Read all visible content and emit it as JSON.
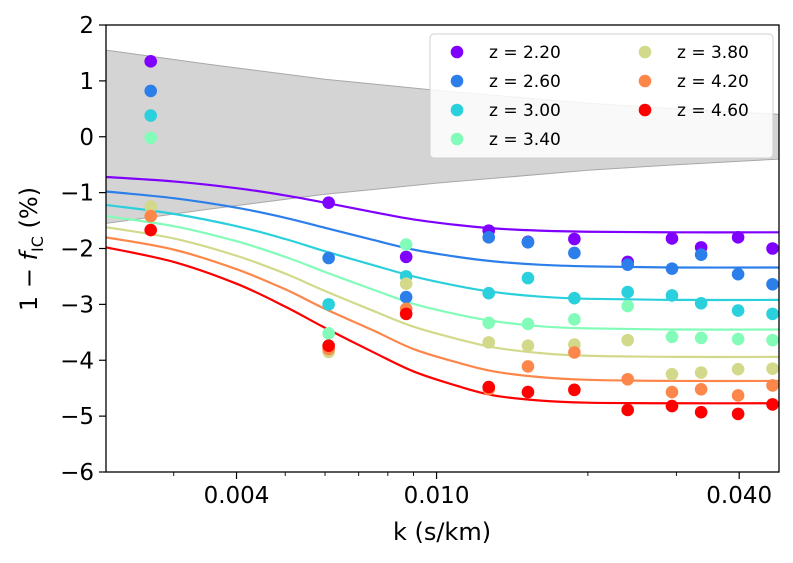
{
  "chart_data": {
    "type": "scatter",
    "xlabel": "k (s/km)",
    "ylabel_prefix": "1 − ",
    "ylabel_f": "f",
    "ylabel_sub": "IC",
    "ylabel_suffix": " (%)",
    "x_scale": "log",
    "xlim": [
      0.0022,
      0.048
    ],
    "ylim": [
      -6,
      2
    ],
    "x_ticks": [
      {
        "value": 0.004,
        "label": "0.004"
      },
      {
        "value": 0.01,
        "label": "0.010"
      },
      {
        "value": 0.04,
        "label": "0.040"
      }
    ],
    "y_ticks": [
      {
        "value": 2,
        "label": "2"
      },
      {
        "value": 1,
        "label": "1"
      },
      {
        "value": 0,
        "label": "0"
      },
      {
        "value": -1,
        "label": "−1"
      },
      {
        "value": -2,
        "label": "−2"
      },
      {
        "value": -3,
        "label": "−3"
      },
      {
        "value": -4,
        "label": "−4"
      },
      {
        "value": -5,
        "label": "−5"
      },
      {
        "value": -6,
        "label": "−6"
      }
    ],
    "legend_position": "top-right",
    "band": {
      "color": "#d4d4d4",
      "edge_color": "#a8a8a8",
      "upper": [
        [
          0.0022,
          1.55
        ],
        [
          0.0035,
          1.3
        ],
        [
          0.006,
          1.03
        ],
        [
          0.01,
          0.83
        ],
        [
          0.02,
          0.6
        ],
        [
          0.03,
          0.5
        ],
        [
          0.048,
          0.4
        ]
      ],
      "lower": [
        [
          0.0022,
          -1.55
        ],
        [
          0.0035,
          -1.3
        ],
        [
          0.006,
          -1.03
        ],
        [
          0.01,
          -0.83
        ],
        [
          0.02,
          -0.6
        ],
        [
          0.03,
          -0.5
        ],
        [
          0.048,
          -0.4
        ]
      ]
    },
    "series": [
      {
        "name": "z = 2.20",
        "color": "#7f00ff",
        "points": [
          [
            0.0027,
            1.35
          ],
          [
            0.0061,
            -1.18
          ],
          [
            0.0087,
            -2.15
          ],
          [
            0.0127,
            -1.68
          ],
          [
            0.0152,
            -1.88
          ],
          [
            0.0188,
            -1.83
          ],
          [
            0.024,
            -2.24
          ],
          [
            0.0294,
            -1.82
          ],
          [
            0.0336,
            -1.98
          ],
          [
            0.0398,
            -1.8
          ],
          [
            0.0466,
            -2.0
          ]
        ],
        "curve": [
          [
            0.0022,
            -0.72
          ],
          [
            0.003,
            -0.8
          ],
          [
            0.004,
            -0.92
          ],
          [
            0.005,
            -1.05
          ],
          [
            0.006,
            -1.18
          ],
          [
            0.0075,
            -1.35
          ],
          [
            0.009,
            -1.48
          ],
          [
            0.011,
            -1.58
          ],
          [
            0.013,
            -1.64
          ],
          [
            0.016,
            -1.68
          ],
          [
            0.02,
            -1.7
          ],
          [
            0.03,
            -1.71
          ],
          [
            0.048,
            -1.71
          ]
        ]
      },
      {
        "name": "z = 2.60",
        "color": "#2c7fea",
        "points": [
          [
            0.0027,
            0.82
          ],
          [
            0.0061,
            -2.17
          ],
          [
            0.0087,
            -2.87
          ],
          [
            0.0127,
            -1.8
          ],
          [
            0.0152,
            -1.89
          ],
          [
            0.0188,
            -2.08
          ],
          [
            0.024,
            -2.29
          ],
          [
            0.0294,
            -2.36
          ],
          [
            0.0336,
            -2.11
          ],
          [
            0.0398,
            -2.46
          ],
          [
            0.0466,
            -2.64
          ]
        ],
        "curve": [
          [
            0.0022,
            -0.98
          ],
          [
            0.003,
            -1.1
          ],
          [
            0.004,
            -1.27
          ],
          [
            0.005,
            -1.45
          ],
          [
            0.006,
            -1.63
          ],
          [
            0.0075,
            -1.85
          ],
          [
            0.009,
            -2.02
          ],
          [
            0.011,
            -2.15
          ],
          [
            0.013,
            -2.23
          ],
          [
            0.016,
            -2.29
          ],
          [
            0.02,
            -2.32
          ],
          [
            0.03,
            -2.34
          ],
          [
            0.048,
            -2.34
          ]
        ]
      },
      {
        "name": "z = 3.00",
        "color": "#2ad0db",
        "points": [
          [
            0.0027,
            0.38
          ],
          [
            0.0061,
            -3.0
          ],
          [
            0.0087,
            -2.5
          ],
          [
            0.0127,
            -2.8
          ],
          [
            0.0152,
            -2.53
          ],
          [
            0.0188,
            -2.89
          ],
          [
            0.024,
            -2.78
          ],
          [
            0.0294,
            -2.84
          ],
          [
            0.0336,
            -2.98
          ],
          [
            0.0398,
            -3.11
          ],
          [
            0.0466,
            -3.17
          ]
        ],
        "curve": [
          [
            0.0022,
            -1.22
          ],
          [
            0.003,
            -1.38
          ],
          [
            0.004,
            -1.6
          ],
          [
            0.005,
            -1.83
          ],
          [
            0.006,
            -2.05
          ],
          [
            0.0075,
            -2.3
          ],
          [
            0.009,
            -2.5
          ],
          [
            0.011,
            -2.67
          ],
          [
            0.013,
            -2.78
          ],
          [
            0.016,
            -2.86
          ],
          [
            0.02,
            -2.9
          ],
          [
            0.03,
            -2.92
          ],
          [
            0.048,
            -2.92
          ]
        ]
      },
      {
        "name": "z = 3.40",
        "color": "#82fcb8",
        "points": [
          [
            0.0027,
            -0.02
          ],
          [
            0.0061,
            -3.52
          ],
          [
            0.0087,
            -1.93
          ],
          [
            0.0127,
            -3.33
          ],
          [
            0.0152,
            -3.35
          ],
          [
            0.0188,
            -3.27
          ],
          [
            0.024,
            -3.03
          ],
          [
            0.0294,
            -3.58
          ],
          [
            0.0336,
            -3.6
          ],
          [
            0.0398,
            -3.62
          ],
          [
            0.0466,
            -3.64
          ]
        ],
        "curve": [
          [
            0.0022,
            -1.42
          ],
          [
            0.003,
            -1.6
          ],
          [
            0.004,
            -1.87
          ],
          [
            0.005,
            -2.15
          ],
          [
            0.006,
            -2.42
          ],
          [
            0.0075,
            -2.74
          ],
          [
            0.009,
            -2.99
          ],
          [
            0.011,
            -3.18
          ],
          [
            0.013,
            -3.3
          ],
          [
            0.016,
            -3.39
          ],
          [
            0.02,
            -3.43
          ],
          [
            0.03,
            -3.45
          ],
          [
            0.048,
            -3.45
          ]
        ]
      },
      {
        "name": "z = 3.80",
        "color": "#d3d98a",
        "points": [
          [
            0.0027,
            -1.25
          ],
          [
            0.0061,
            -3.85
          ],
          [
            0.0087,
            -2.63
          ],
          [
            0.0127,
            -3.68
          ],
          [
            0.0152,
            -3.74
          ],
          [
            0.0188,
            -3.72
          ],
          [
            0.024,
            -3.64
          ],
          [
            0.0294,
            -4.25
          ],
          [
            0.0336,
            -4.22
          ],
          [
            0.0398,
            -4.16
          ],
          [
            0.0466,
            -4.15
          ]
        ],
        "curve": [
          [
            0.0022,
            -1.62
          ],
          [
            0.003,
            -1.82
          ],
          [
            0.004,
            -2.13
          ],
          [
            0.005,
            -2.45
          ],
          [
            0.006,
            -2.76
          ],
          [
            0.0075,
            -3.12
          ],
          [
            0.009,
            -3.4
          ],
          [
            0.011,
            -3.62
          ],
          [
            0.013,
            -3.77
          ],
          [
            0.016,
            -3.87
          ],
          [
            0.02,
            -3.92
          ],
          [
            0.03,
            -3.94
          ],
          [
            0.048,
            -3.94
          ]
        ]
      },
      {
        "name": "z = 4.20",
        "color": "#fd874a",
        "points": [
          [
            0.0027,
            -1.42
          ],
          [
            0.0061,
            -3.8
          ],
          [
            0.0087,
            -3.08
          ],
          [
            0.0127,
            -4.52
          ],
          [
            0.0152,
            -4.11
          ],
          [
            0.0188,
            -3.86
          ],
          [
            0.024,
            -4.34
          ],
          [
            0.0294,
            -4.57
          ],
          [
            0.0336,
            -4.52
          ],
          [
            0.0398,
            -4.63
          ],
          [
            0.0466,
            -4.45
          ]
        ],
        "curve": [
          [
            0.0022,
            -1.8
          ],
          [
            0.003,
            -2.02
          ],
          [
            0.004,
            -2.37
          ],
          [
            0.005,
            -2.73
          ],
          [
            0.006,
            -3.08
          ],
          [
            0.0075,
            -3.47
          ],
          [
            0.009,
            -3.8
          ],
          [
            0.011,
            -4.04
          ],
          [
            0.013,
            -4.2
          ],
          [
            0.016,
            -4.3
          ],
          [
            0.02,
            -4.35
          ],
          [
            0.03,
            -4.37
          ],
          [
            0.048,
            -4.37
          ]
        ]
      },
      {
        "name": "z = 4.60",
        "color": "#ff0000",
        "points": [
          [
            0.0027,
            -1.67
          ],
          [
            0.0061,
            -3.74
          ],
          [
            0.0087,
            -3.17
          ],
          [
            0.0127,
            -4.48
          ],
          [
            0.0152,
            -4.57
          ],
          [
            0.0188,
            -4.53
          ],
          [
            0.024,
            -4.89
          ],
          [
            0.0294,
            -4.82
          ],
          [
            0.0336,
            -4.93
          ],
          [
            0.0398,
            -4.96
          ],
          [
            0.0466,
            -4.79
          ]
        ],
        "curve": [
          [
            0.0022,
            -1.98
          ],
          [
            0.003,
            -2.24
          ],
          [
            0.004,
            -2.63
          ],
          [
            0.005,
            -3.04
          ],
          [
            0.006,
            -3.42
          ],
          [
            0.0075,
            -3.86
          ],
          [
            0.009,
            -4.2
          ],
          [
            0.011,
            -4.46
          ],
          [
            0.013,
            -4.63
          ],
          [
            0.016,
            -4.72
          ],
          [
            0.02,
            -4.76
          ],
          [
            0.03,
            -4.77
          ],
          [
            0.048,
            -4.77
          ]
        ]
      }
    ]
  }
}
